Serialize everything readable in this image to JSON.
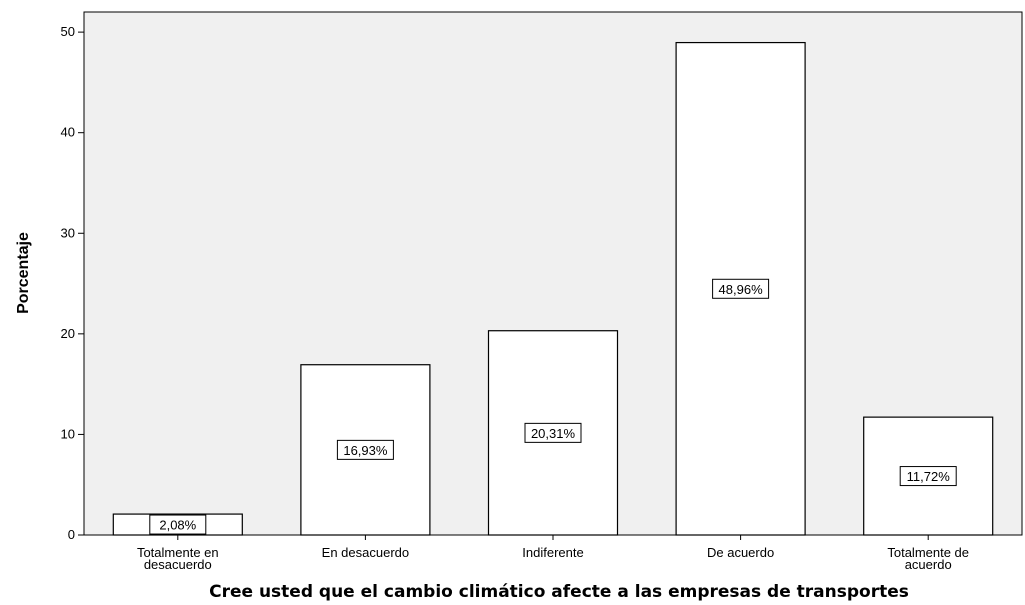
{
  "chart_data": {
    "type": "bar",
    "categories": [
      [
        "Totalmente en",
        "desacuerdo"
      ],
      [
        "En desacuerdo"
      ],
      [
        "Indiferente"
      ],
      [
        "De acuerdo"
      ],
      [
        "Totalmente de",
        "acuerdo"
      ]
    ],
    "values": [
      2.08,
      16.93,
      20.31,
      48.96,
      11.72
    ],
    "data_labels": [
      "2,08%",
      "16,93%",
      "20,31%",
      "48,96%",
      "11,72%"
    ],
    "xlabel": "Cree usted que el cambio climático afecte a las empresas de transportes",
    "ylabel": "Porcentaje",
    "ylim": [
      0,
      52
    ],
    "yticks": [
      0,
      10,
      20,
      30,
      40,
      50
    ],
    "grid": false,
    "colors": {
      "plot_background": "#f0f0f0",
      "bar_fill": "#ffffff",
      "bar_stroke": "#000000"
    }
  }
}
